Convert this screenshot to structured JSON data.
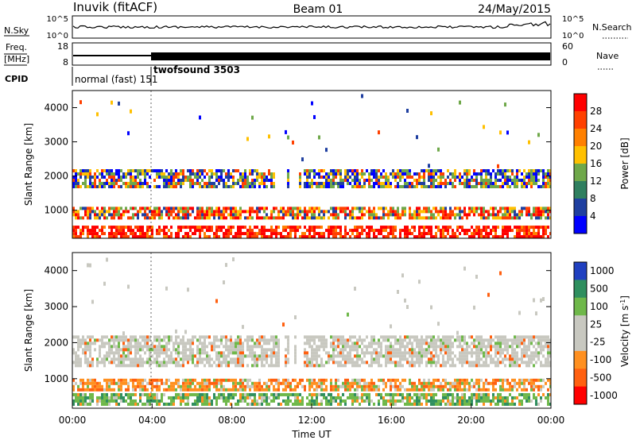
{
  "header": {
    "station": "Inuvik (fitACF)",
    "beam": "Beam 01",
    "date": "24/May/2015"
  },
  "noise_panel": {
    "left_label": "N.Sky",
    "right_label": "N.Search",
    "left_ticks": [
      "10^5",
      "10^0"
    ],
    "right_ticks": [
      "10^5",
      "10^0"
    ]
  },
  "freq_panel": {
    "left_label_top": "Freq.",
    "left_label_bottom": "[MHz]",
    "right_label": "Nave",
    "left_ticks": [
      "18",
      "8"
    ],
    "right_ticks": [
      "60",
      "0"
    ]
  },
  "cpid": {
    "label": "CPID",
    "segments": [
      {
        "name": "normal (fast) 151",
        "start_hour": 0,
        "end_hour": 4
      },
      {
        "name": "twofsound 3503",
        "start_hour": 4,
        "end_hour": 24
      }
    ]
  },
  "chart_data": [
    {
      "type": "heatmap",
      "title": "",
      "xlabel": "",
      "ylabel": "Slant Range [km]",
      "xlim": [
        0,
        24
      ],
      "ylim": [
        180,
        4500
      ],
      "yticks": [
        "1000",
        "2000",
        "3000",
        "4000"
      ],
      "colorbar": {
        "label": "Power [dB]",
        "ticks": [
          "28",
          "24",
          "20",
          "16",
          "12",
          "8",
          "4"
        ],
        "colors": [
          "#ff0000",
          "#ff4000",
          "#ff8000",
          "#ffc000",
          "#6fa84a",
          "#2f7f5f",
          "#1f3fa0",
          "#0000ff"
        ]
      },
      "bands": [
        {
          "from_km": 1700,
          "to_km": 2200,
          "level_db": 14
        },
        {
          "from_km": 800,
          "to_km": 1100,
          "level_db": 16
        },
        {
          "from_km": 250,
          "to_km": 550,
          "level_db": 26
        }
      ]
    },
    {
      "type": "heatmap",
      "title": "",
      "xlabel": "Time UT",
      "ylabel": "Slant Range [km]",
      "xlim": [
        0,
        24
      ],
      "ylim": [
        180,
        4500
      ],
      "xticks": [
        "00:00",
        "04:00",
        "08:00",
        "12:00",
        "16:00",
        "20:00",
        "00:00"
      ],
      "yticks": [
        "1000",
        "2000",
        "3000",
        "4000"
      ],
      "colorbar": {
        "label": "Velocity [m s",
        "label_superscript": "-1",
        "label_close": "]",
        "ticks": [
          "1000",
          "500",
          "100",
          "25",
          "-25",
          "-100",
          "-500",
          "-1000"
        ],
        "colors": [
          "#2040c0",
          "#2f8f5f",
          "#6fb84a",
          "#c8c8c0",
          "#c8c8c0",
          "#ff9020",
          "#ff6010",
          "#ff0000"
        ]
      },
      "bands": [
        {
          "from_km": 1400,
          "to_km": 2200,
          "velocity_ms": 0
        },
        {
          "from_km": 700,
          "to_km": 1000,
          "velocity_ms": -300
        },
        {
          "from_km": 250,
          "to_km": 600,
          "velocity_ms": 100
        }
      ]
    }
  ]
}
